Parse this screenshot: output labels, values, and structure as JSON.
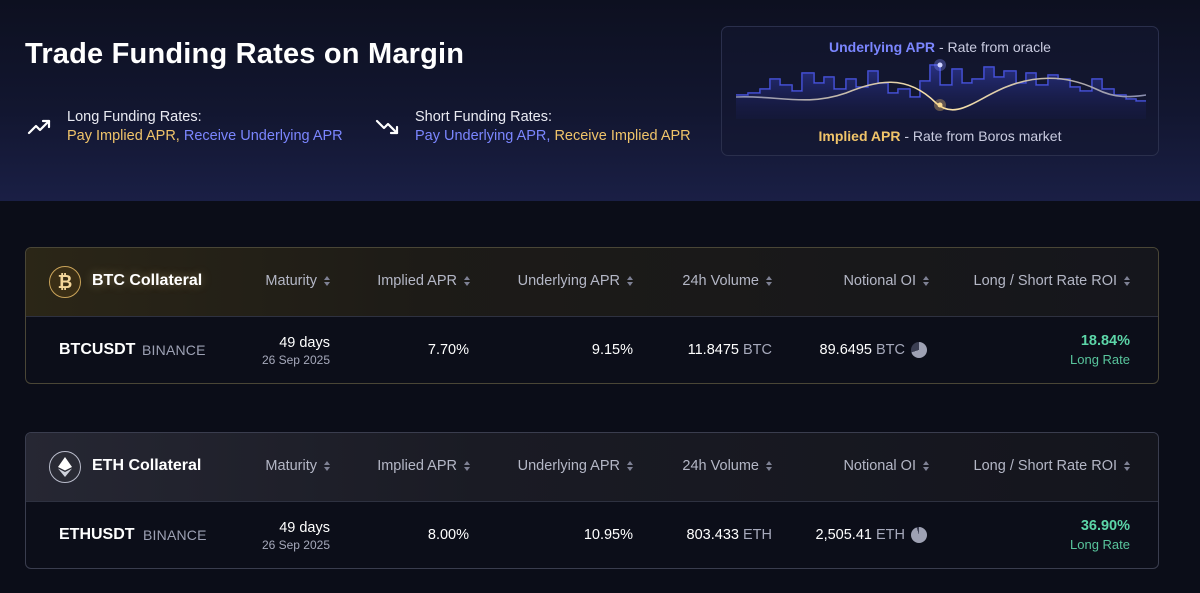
{
  "header": {
    "title": "Trade Funding Rates on Margin",
    "long": {
      "title": "Long Funding Rates:",
      "pay": "Pay Implied APR,",
      "receive": "Receive Underlying APR"
    },
    "short": {
      "title": "Short Funding Rates:",
      "pay": "Pay Underlying APR,",
      "receive": "Receive Implied APR"
    }
  },
  "legend": {
    "top_label": "Underlying APR",
    "top_desc": "- Rate from oracle",
    "bottom_label": "Implied APR",
    "bottom_desc": "- Rate from Boros market"
  },
  "columns": {
    "maturity": "Maturity",
    "implied": "Implied APR",
    "underlying": "Underlying APR",
    "volume": "24h Volume",
    "oi": "Notional OI",
    "roi": "Long / Short Rate ROI"
  },
  "markets": [
    {
      "collateral": "BTC Collateral",
      "coin_icon": "bitcoin-icon",
      "ticker": "BTCUSDT",
      "exchange": "BINANCE",
      "maturity_days": "49 days",
      "maturity_date": "26 Sep 2025",
      "implied_apr": "7.70%",
      "underlying_apr": "9.15%",
      "volume": "11.8475",
      "volume_unit": "BTC",
      "oi": "89.6495",
      "oi_unit": "BTC",
      "oi_fill_pct": 70,
      "roi": "18.84%",
      "roi_label": "Long Rate"
    },
    {
      "collateral": "ETH Collateral",
      "coin_icon": "ethereum-icon",
      "ticker": "ETHUSDT",
      "exchange": "BINANCE",
      "maturity_days": "49 days",
      "maturity_date": "26 Sep 2025",
      "implied_apr": "8.00%",
      "underlying_apr": "10.95%",
      "volume": "803.433",
      "volume_unit": "ETH",
      "oi": "2,505.41",
      "oi_unit": "ETH",
      "oi_fill_pct": 95,
      "roi": "36.90%",
      "roi_label": "Long Rate"
    }
  ],
  "colors": {
    "implied": "#f0c46a",
    "underlying": "#7b86ff",
    "positive": "#5cd6a8"
  }
}
